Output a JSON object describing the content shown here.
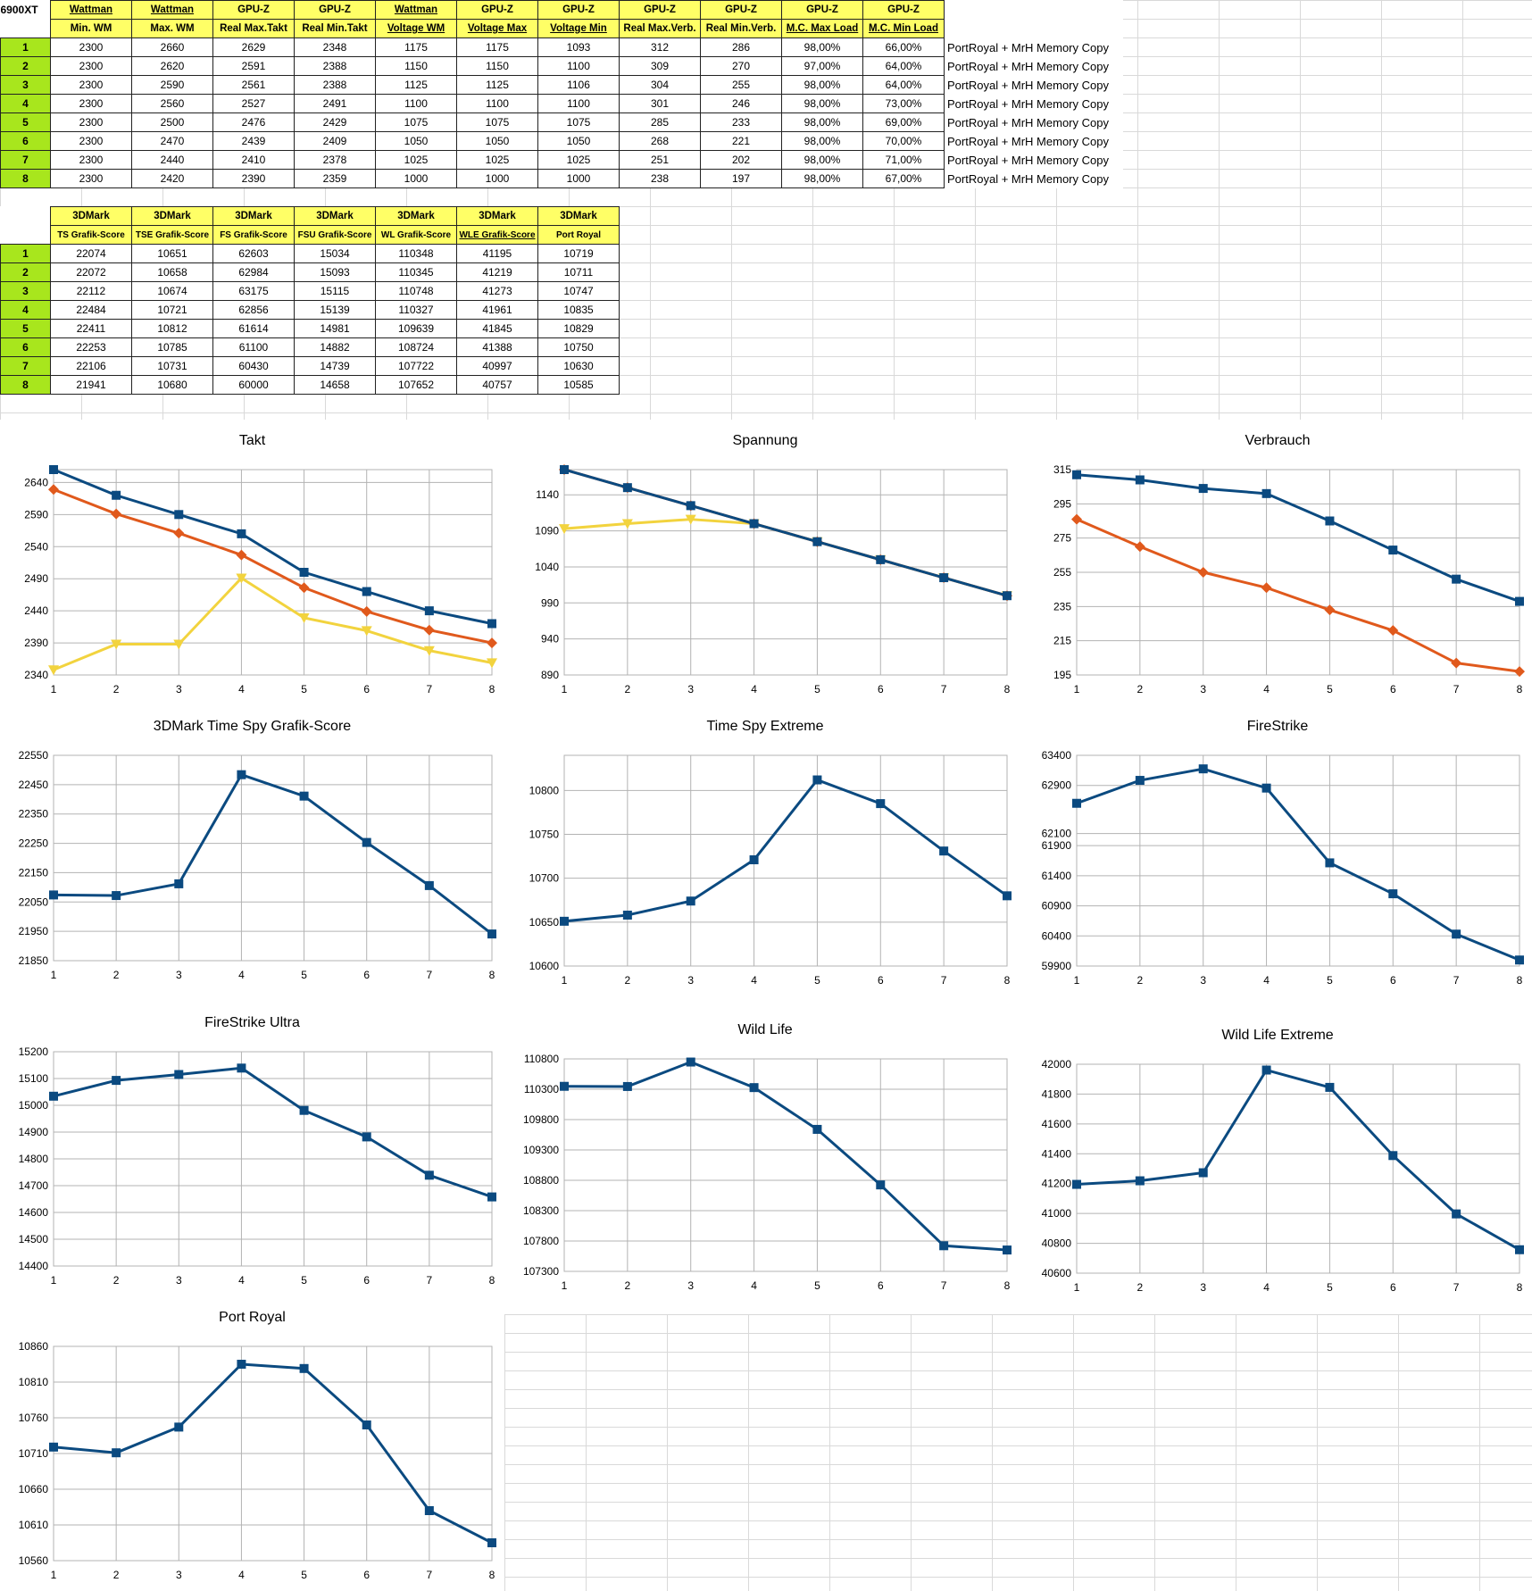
{
  "sheet": {
    "corner": "6900XT",
    "table1": {
      "head1": [
        "Wattman",
        "Wattman",
        "GPU-Z",
        "GPU-Z",
        "Wattman",
        "GPU-Z",
        "GPU-Z",
        "GPU-Z",
        "GPU-Z",
        "GPU-Z",
        "GPU-Z"
      ],
      "head2": [
        "Min. WM",
        "Max. WM",
        "Real Max.Takt",
        "Real Min.Takt",
        "Voltage WM",
        "Voltage Max",
        "Voltage Min",
        "Real Max.Verb.",
        "Real Min.Verb.",
        "M.C. Max Load",
        "M.C. Min Load"
      ],
      "rows": [
        {
          "n": "1",
          "v": [
            "2300",
            "2660",
            "2629",
            "2348",
            "1175",
            "1175",
            "1093",
            "312",
            "286",
            "98,00%",
            "66,00%"
          ],
          "note": "PortRoyal + MrH Memory Copy"
        },
        {
          "n": "2",
          "v": [
            "2300",
            "2620",
            "2591",
            "2388",
            "1150",
            "1150",
            "1100",
            "309",
            "270",
            "97,00%",
            "64,00%"
          ],
          "note": "PortRoyal + MrH Memory Copy"
        },
        {
          "n": "3",
          "v": [
            "2300",
            "2590",
            "2561",
            "2388",
            "1125",
            "1125",
            "1106",
            "304",
            "255",
            "98,00%",
            "64,00%"
          ],
          "note": "PortRoyal + MrH Memory Copy"
        },
        {
          "n": "4",
          "v": [
            "2300",
            "2560",
            "2527",
            "2491",
            "1100",
            "1100",
            "1100",
            "301",
            "246",
            "98,00%",
            "73,00%"
          ],
          "note": "PortRoyal + MrH Memory Copy"
        },
        {
          "n": "5",
          "v": [
            "2300",
            "2500",
            "2476",
            "2429",
            "1075",
            "1075",
            "1075",
            "285",
            "233",
            "98,00%",
            "69,00%"
          ],
          "note": "PortRoyal + MrH Memory Copy"
        },
        {
          "n": "6",
          "v": [
            "2300",
            "2470",
            "2439",
            "2409",
            "1050",
            "1050",
            "1050",
            "268",
            "221",
            "98,00%",
            "70,00%"
          ],
          "note": "PortRoyal + MrH Memory Copy"
        },
        {
          "n": "7",
          "v": [
            "2300",
            "2440",
            "2410",
            "2378",
            "1025",
            "1025",
            "1025",
            "251",
            "202",
            "98,00%",
            "71,00%"
          ],
          "note": "PortRoyal + MrH Memory Copy"
        },
        {
          "n": "8",
          "v": [
            "2300",
            "2420",
            "2390",
            "2359",
            "1000",
            "1000",
            "1000",
            "238",
            "197",
            "98,00%",
            "67,00%"
          ],
          "note": "PortRoyal + MrH Memory Copy"
        }
      ]
    },
    "table2": {
      "head1": [
        "3DMark",
        "3DMark",
        "3DMark",
        "3DMark",
        "3DMark",
        "3DMark",
        "3DMark"
      ],
      "head2": [
        "TS Grafik-Score",
        "TSE Grafik-Score",
        "FS Grafik-Score",
        "FSU Grafik-Score",
        "WL Grafik-Score",
        "WLE Grafik-Score",
        "Port Royal"
      ],
      "rows": [
        {
          "n": "1",
          "v": [
            "22074",
            "10651",
            "62603",
            "15034",
            "110348",
            "41195",
            "10719"
          ]
        },
        {
          "n": "2",
          "v": [
            "22072",
            "10658",
            "62984",
            "15093",
            "110345",
            "41219",
            "10711"
          ]
        },
        {
          "n": "3",
          "v": [
            "22112",
            "10674",
            "63175",
            "15115",
            "110748",
            "41273",
            "10747"
          ]
        },
        {
          "n": "4",
          "v": [
            "22484",
            "10721",
            "62856",
            "15139",
            "110327",
            "41961",
            "10835"
          ]
        },
        {
          "n": "5",
          "v": [
            "22411",
            "10812",
            "61614",
            "14981",
            "109639",
            "41845",
            "10829"
          ]
        },
        {
          "n": "6",
          "v": [
            "22253",
            "10785",
            "61100",
            "14882",
            "108724",
            "41388",
            "10750"
          ]
        },
        {
          "n": "7",
          "v": [
            "22106",
            "10731",
            "60430",
            "14739",
            "107722",
            "40997",
            "10630"
          ]
        },
        {
          "n": "8",
          "v": [
            "21941",
            "10680",
            "60000",
            "14658",
            "107652",
            "40757",
            "10585"
          ]
        }
      ]
    }
  },
  "chart_data": [
    {
      "type": "line",
      "title": "Takt",
      "categories": [
        "1",
        "2",
        "3",
        "4",
        "5",
        "6",
        "7",
        "8"
      ],
      "ylim": [
        2340,
        2660
      ],
      "yticks": [
        2340,
        2390,
        2440,
        2490,
        2540,
        2590,
        2640
      ],
      "series": [
        {
          "values": [
            2660,
            2620,
            2590,
            2560,
            2500,
            2470,
            2440,
            2420
          ],
          "color": "#0b4a80",
          "marker": "square"
        },
        {
          "values": [
            2629,
            2591,
            2561,
            2527,
            2476,
            2439,
            2410,
            2390
          ],
          "color": "#e0591c",
          "marker": "diamond"
        },
        {
          "values": [
            2348,
            2388,
            2388,
            2491,
            2429,
            2409,
            2378,
            2359
          ],
          "color": "#f2d33e",
          "marker": "triangle"
        }
      ]
    },
    {
      "type": "line",
      "title": "Spannung",
      "categories": [
        "1",
        "2",
        "3",
        "4",
        "5",
        "6",
        "7",
        "8"
      ],
      "ylim": [
        890,
        1175
      ],
      "yticks": [
        890,
        940,
        990,
        1040,
        1090,
        1140
      ],
      "series": [
        {
          "values": [
            1175,
            1150,
            1125,
            1100,
            1075,
            1050,
            1025,
            1000
          ],
          "color": "#0b4a80",
          "marker": "square"
        },
        {
          "values": [
            1175,
            1150,
            1125,
            1100,
            1075,
            1050,
            1025,
            1000
          ],
          "color": "#e0591c",
          "marker": "diamond"
        },
        {
          "values": [
            1093,
            1100,
            1106,
            1100,
            1075,
            1050,
            1025,
            1000
          ],
          "color": "#f2d33e",
          "marker": "triangle"
        }
      ]
    },
    {
      "type": "line",
      "title": "Verbrauch",
      "categories": [
        "1",
        "2",
        "3",
        "4",
        "5",
        "6",
        "7",
        "8"
      ],
      "ylim": [
        195,
        315
      ],
      "yticks": [
        195,
        215,
        235,
        255,
        275,
        295,
        315
      ],
      "series": [
        {
          "values": [
            312,
            309,
            304,
            301,
            285,
            268,
            251,
            238
          ],
          "color": "#0b4a80",
          "marker": "square"
        },
        {
          "values": [
            286,
            270,
            255,
            246,
            233,
            221,
            202,
            197
          ],
          "color": "#e0591c",
          "marker": "diamond"
        }
      ]
    },
    {
      "type": "line",
      "title": "3DMark Time Spy Grafik-Score",
      "categories": [
        "1",
        "2",
        "3",
        "4",
        "5",
        "6",
        "7",
        "8"
      ],
      "ylim": [
        21850,
        22550
      ],
      "yticks": [
        21850,
        21950,
        22050,
        22150,
        22250,
        22350,
        22450,
        22550
      ],
      "series": [
        {
          "values": [
            22074,
            22072,
            22112,
            22484,
            22411,
            22253,
            22106,
            21941
          ],
          "color": "#0b4a80",
          "marker": "square"
        }
      ]
    },
    {
      "type": "line",
      "title": "Time Spy Extreme",
      "categories": [
        "1",
        "2",
        "3",
        "4",
        "5",
        "6",
        "7",
        "8"
      ],
      "ylim": [
        10600,
        10840
      ],
      "yticks": [
        10600,
        10650,
        10700,
        10750,
        10800
      ],
      "series": [
        {
          "values": [
            10651,
            10658,
            10674,
            10721,
            10812,
            10785,
            10731,
            10680
          ],
          "color": "#0b4a80",
          "marker": "square"
        }
      ]
    },
    {
      "type": "line",
      "title": "FireStrike",
      "categories": [
        "1",
        "2",
        "3",
        "4",
        "5",
        "6",
        "7",
        "8"
      ],
      "ylim": [
        59900,
        63400
      ],
      "yticks": [
        59900,
        60400,
        60900,
        61400,
        61900,
        62100,
        62900,
        63400
      ],
      "series": [
        {
          "values": [
            62603,
            62984,
            63175,
            62856,
            61614,
            61100,
            60430,
            60000
          ],
          "color": "#0b4a80",
          "marker": "square"
        }
      ]
    },
    {
      "type": "line",
      "title": "FireStrike Ultra",
      "categories": [
        "1",
        "2",
        "3",
        "4",
        "5",
        "6",
        "7",
        "8"
      ],
      "ylim": [
        14400,
        15200
      ],
      "yticks": [
        14400,
        14500,
        14600,
        14700,
        14800,
        14900,
        15000,
        15100,
        15200
      ],
      "series": [
        {
          "values": [
            15034,
            15093,
            15115,
            15139,
            14981,
            14882,
            14739,
            14658
          ],
          "color": "#0b4a80",
          "marker": "square"
        }
      ]
    },
    {
      "type": "line",
      "title": "Wild Life",
      "categories": [
        "1",
        "2",
        "3",
        "4",
        "5",
        "6",
        "7",
        "8"
      ],
      "ylim": [
        107300,
        110800
      ],
      "yticks": [
        107300,
        107800,
        108300,
        108800,
        109300,
        109800,
        110300,
        110800
      ],
      "series": [
        {
          "values": [
            110348,
            110345,
            110748,
            110327,
            109639,
            108724,
            107722,
            107652
          ],
          "color": "#0b4a80",
          "marker": "square"
        }
      ]
    },
    {
      "type": "line",
      "title": "Wild Life Extreme",
      "categories": [
        "1",
        "2",
        "3",
        "4",
        "5",
        "6",
        "7",
        "8"
      ],
      "ylim": [
        40600,
        42000
      ],
      "yticks": [
        40600,
        40800,
        41000,
        41200,
        41400,
        41600,
        41800,
        42000
      ],
      "series": [
        {
          "values": [
            41195,
            41219,
            41273,
            41961,
            41845,
            41388,
            40997,
            40757
          ],
          "color": "#0b4a80",
          "marker": "square"
        }
      ]
    },
    {
      "type": "line",
      "title": "Port Royal",
      "categories": [
        "1",
        "2",
        "3",
        "4",
        "5",
        "6",
        "7",
        "8"
      ],
      "ylim": [
        10560,
        10860
      ],
      "yticks": [
        10560,
        10610,
        10660,
        10710,
        10760,
        10810,
        10860
      ],
      "series": [
        {
          "values": [
            10719,
            10711,
            10747,
            10835,
            10829,
            10750,
            10630,
            10585
          ],
          "color": "#0b4a80",
          "marker": "square"
        }
      ]
    }
  ]
}
